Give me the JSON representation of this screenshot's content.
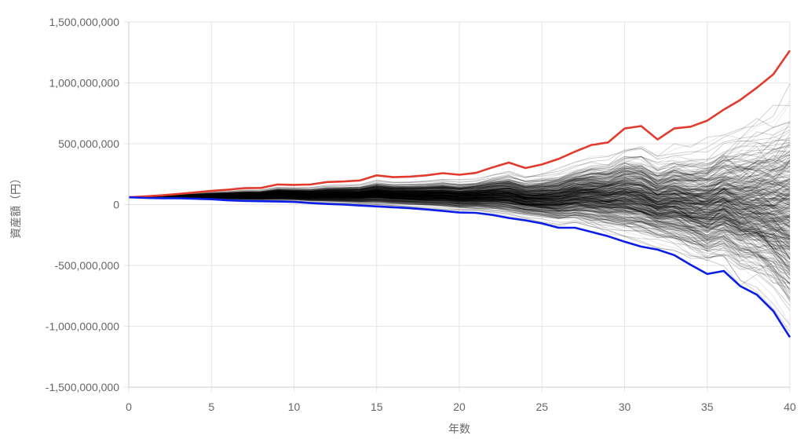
{
  "chart_data": {
    "type": "line",
    "title": "",
    "xlabel": "年数",
    "ylabel": "資産額（円）",
    "xlim": [
      0,
      40
    ],
    "ylim": [
      -1500000000,
      1500000000
    ],
    "x_ticks": [
      0,
      5,
      10,
      15,
      20,
      25,
      30,
      35,
      40
    ],
    "y_ticks": [
      1500000000,
      1000000000,
      500000000,
      0,
      -500000000,
      -1000000000,
      -1500000000
    ],
    "y_tick_labels": [
      "1,500,000,000",
      "1,000,000,000",
      "500,000,000",
      "0",
      "-500,000,000",
      "-1,000,000,000",
      "-1,500,000,000"
    ],
    "grid": true,
    "legend": "none",
    "simulation_count_estimate": 400,
    "simulation_color": "#000000",
    "x": [
      0,
      1,
      2,
      3,
      4,
      5,
      6,
      7,
      8,
      9,
      10,
      11,
      12,
      13,
      14,
      15,
      16,
      17,
      18,
      19,
      20,
      21,
      22,
      23,
      24,
      25,
      26,
      27,
      28,
      29,
      30,
      31,
      32,
      33,
      34,
      35,
      36,
      37,
      38,
      39,
      40
    ],
    "series": [
      {
        "color": "#e23b2e",
        "values": [
          60000000,
          68000000,
          76000000,
          88000000,
          100000000,
          112000000,
          122000000,
          135000000,
          137000000,
          165000000,
          162000000,
          165000000,
          185000000,
          190000000,
          198000000,
          240000000,
          225000000,
          230000000,
          240000000,
          258000000,
          245000000,
          260000000,
          305000000,
          345000000,
          300000000,
          330000000,
          375000000,
          435000000,
          490000000,
          510000000,
          625000000,
          645000000,
          535000000,
          625000000,
          640000000,
          690000000,
          780000000,
          860000000,
          960000000,
          1070000000,
          1265000000
        ]
      },
      {
        "color": "#0a1ee8",
        "values": [
          60000000,
          55000000,
          52000000,
          52000000,
          48000000,
          44000000,
          35000000,
          30000000,
          28000000,
          25000000,
          22000000,
          12000000,
          5000000,
          0,
          -8000000,
          -15000000,
          -22000000,
          -30000000,
          -40000000,
          -52000000,
          -65000000,
          -68000000,
          -85000000,
          -110000000,
          -130000000,
          -155000000,
          -190000000,
          -190000000,
          -225000000,
          -260000000,
          -305000000,
          -345000000,
          -370000000,
          -415000000,
          -495000000,
          -570000000,
          -545000000,
          -670000000,
          -740000000,
          -875000000,
          -1090000000
        ]
      }
    ]
  }
}
